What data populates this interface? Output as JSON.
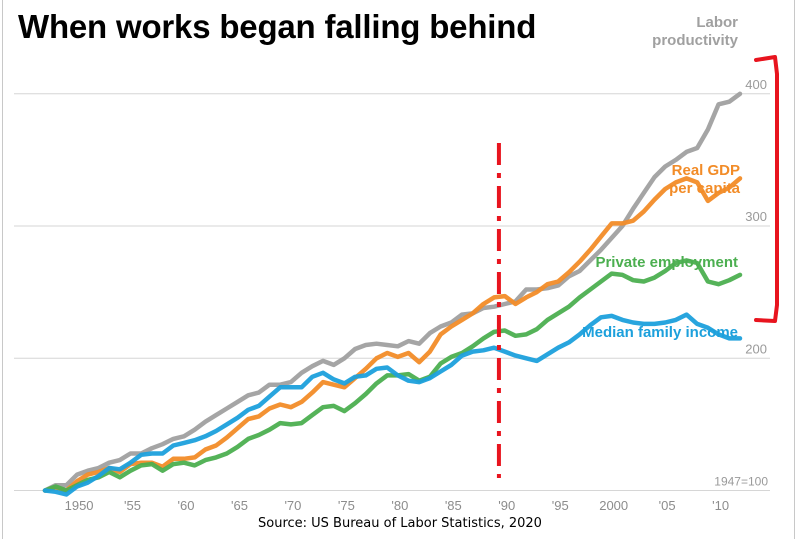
{
  "title": "When works began falling behind",
  "source": "Source: US Bureau of Labor Statistics, 2020",
  "chart_data": {
    "type": "line",
    "title": "When works began falling behind",
    "xlim": [
      1947,
      2013
    ],
    "ylim": [
      100,
      430
    ],
    "x_ticks": [
      {
        "value": 1950,
        "label": "1950"
      },
      {
        "value": 1955,
        "label": "'55"
      },
      {
        "value": 1960,
        "label": "'60"
      },
      {
        "value": 1965,
        "label": "'65"
      },
      {
        "value": 1970,
        "label": "'70"
      },
      {
        "value": 1975,
        "label": "'75"
      },
      {
        "value": 1980,
        "label": "'80"
      },
      {
        "value": 1985,
        "label": "'85"
      },
      {
        "value": 1990,
        "label": "'90"
      },
      {
        "value": 1995,
        "label": "'95"
      },
      {
        "value": 2000,
        "label": "2000"
      },
      {
        "value": 2005,
        "label": "'05"
      },
      {
        "value": 2010,
        "label": "'10"
      }
    ],
    "y_ticks": [
      {
        "value": 400,
        "label": "400"
      },
      {
        "value": 300,
        "label": "300"
      },
      {
        "value": 200,
        "label": "200"
      },
      {
        "value": 100,
        "label": "1947=100"
      }
    ],
    "grid": true,
    "series": [
      {
        "name": "Labor productivity",
        "label_lines": [
          "Labor",
          "productivity"
        ],
        "color": "#a0a0a0",
        "points": [
          [
            1947,
            100
          ],
          [
            1948,
            104
          ],
          [
            1949,
            104
          ],
          [
            1950,
            112
          ],
          [
            1951,
            115
          ],
          [
            1952,
            117
          ],
          [
            1953,
            121
          ],
          [
            1954,
            123
          ],
          [
            1955,
            128
          ],
          [
            1956,
            128
          ],
          [
            1957,
            132
          ],
          [
            1958,
            135
          ],
          [
            1959,
            139
          ],
          [
            1960,
            141
          ],
          [
            1961,
            146
          ],
          [
            1962,
            152
          ],
          [
            1963,
            157
          ],
          [
            1964,
            162
          ],
          [
            1965,
            167
          ],
          [
            1966,
            172
          ],
          [
            1967,
            174
          ],
          [
            1968,
            180
          ],
          [
            1969,
            180
          ],
          [
            1970,
            182
          ],
          [
            1971,
            189
          ],
          [
            1972,
            194
          ],
          [
            1973,
            198
          ],
          [
            1974,
            195
          ],
          [
            1975,
            200
          ],
          [
            1976,
            207
          ],
          [
            1977,
            210
          ],
          [
            1978,
            211
          ],
          [
            1979,
            210
          ],
          [
            1980,
            209
          ],
          [
            1981,
            213
          ],
          [
            1982,
            211
          ],
          [
            1983,
            219
          ],
          [
            1984,
            224
          ],
          [
            1985,
            227
          ],
          [
            1986,
            233
          ],
          [
            1987,
            234
          ],
          [
            1988,
            238
          ],
          [
            1989,
            239
          ],
          [
            1990,
            241
          ],
          [
            1991,
            243
          ],
          [
            1992,
            252
          ],
          [
            1993,
            252
          ],
          [
            1994,
            253
          ],
          [
            1995,
            255
          ],
          [
            1996,
            262
          ],
          [
            1997,
            266
          ],
          [
            1998,
            274
          ],
          [
            1999,
            282
          ],
          [
            2000,
            291
          ],
          [
            2001,
            300
          ],
          [
            2002,
            313
          ],
          [
            2003,
            325
          ],
          [
            2004,
            337
          ],
          [
            2005,
            345
          ],
          [
            2006,
            350
          ],
          [
            2007,
            356
          ],
          [
            2008,
            359
          ],
          [
            2009,
            373
          ],
          [
            2010,
            392
          ],
          [
            2011,
            394
          ],
          [
            2012,
            400
          ]
        ]
      },
      {
        "name": "Real GDP per capita",
        "label_lines": [
          "Real GDP",
          "per capita"
        ],
        "color": "#f28c28",
        "points": [
          [
            1947,
            100
          ],
          [
            1948,
            102
          ],
          [
            1949,
            100
          ],
          [
            1950,
            107
          ],
          [
            1951,
            112
          ],
          [
            1952,
            114
          ],
          [
            1953,
            117
          ],
          [
            1954,
            114
          ],
          [
            1955,
            120
          ],
          [
            1956,
            121
          ],
          [
            1957,
            121
          ],
          [
            1958,
            118
          ],
          [
            1959,
            124
          ],
          [
            1960,
            124
          ],
          [
            1961,
            125
          ],
          [
            1962,
            131
          ],
          [
            1963,
            134
          ],
          [
            1964,
            140
          ],
          [
            1965,
            147
          ],
          [
            1966,
            154
          ],
          [
            1967,
            156
          ],
          [
            1968,
            162
          ],
          [
            1969,
            165
          ],
          [
            1970,
            163
          ],
          [
            1971,
            167
          ],
          [
            1972,
            174
          ],
          [
            1973,
            182
          ],
          [
            1974,
            180
          ],
          [
            1975,
            178
          ],
          [
            1976,
            185
          ],
          [
            1977,
            192
          ],
          [
            1978,
            200
          ],
          [
            1979,
            204
          ],
          [
            1980,
            201
          ],
          [
            1981,
            204
          ],
          [
            1982,
            197
          ],
          [
            1983,
            205
          ],
          [
            1984,
            218
          ],
          [
            1985,
            224
          ],
          [
            1986,
            229
          ],
          [
            1987,
            234
          ],
          [
            1988,
            241
          ],
          [
            1989,
            246
          ],
          [
            1990,
            247
          ],
          [
            1991,
            241
          ],
          [
            1992,
            246
          ],
          [
            1993,
            250
          ],
          [
            1994,
            256
          ],
          [
            1995,
            258
          ],
          [
            1996,
            265
          ],
          [
            1997,
            273
          ],
          [
            1998,
            282
          ],
          [
            1999,
            292
          ],
          [
            2000,
            302
          ],
          [
            2001,
            302
          ],
          [
            2002,
            304
          ],
          [
            2003,
            311
          ],
          [
            2004,
            320
          ],
          [
            2005,
            328
          ],
          [
            2006,
            333
          ],
          [
            2007,
            336
          ],
          [
            2008,
            333
          ],
          [
            2009,
            319
          ],
          [
            2010,
            325
          ],
          [
            2011,
            329
          ],
          [
            2012,
            336
          ]
        ]
      },
      {
        "name": "Private employment",
        "label_lines": [
          "Private employment"
        ],
        "color": "#4caf50",
        "points": [
          [
            1947,
            100
          ],
          [
            1948,
            103
          ],
          [
            1949,
            100
          ],
          [
            1950,
            104
          ],
          [
            1951,
            108
          ],
          [
            1952,
            110
          ],
          [
            1953,
            114
          ],
          [
            1954,
            110
          ],
          [
            1955,
            115
          ],
          [
            1956,
            119
          ],
          [
            1957,
            120
          ],
          [
            1958,
            115
          ],
          [
            1959,
            120
          ],
          [
            1960,
            121
          ],
          [
            1961,
            119
          ],
          [
            1962,
            123
          ],
          [
            1963,
            125
          ],
          [
            1964,
            128
          ],
          [
            1965,
            133
          ],
          [
            1966,
            139
          ],
          [
            1967,
            142
          ],
          [
            1968,
            146
          ],
          [
            1969,
            151
          ],
          [
            1970,
            150
          ],
          [
            1971,
            151
          ],
          [
            1972,
            157
          ],
          [
            1973,
            163
          ],
          [
            1974,
            164
          ],
          [
            1975,
            160
          ],
          [
            1976,
            166
          ],
          [
            1977,
            173
          ],
          [
            1978,
            181
          ],
          [
            1979,
            187
          ],
          [
            1980,
            187
          ],
          [
            1981,
            188
          ],
          [
            1982,
            183
          ],
          [
            1983,
            186
          ],
          [
            1984,
            196
          ],
          [
            1985,
            201
          ],
          [
            1986,
            204
          ],
          [
            1987,
            209
          ],
          [
            1988,
            215
          ],
          [
            1989,
            220
          ],
          [
            1990,
            221
          ],
          [
            1991,
            217
          ],
          [
            1992,
            218
          ],
          [
            1993,
            222
          ],
          [
            1994,
            229
          ],
          [
            1995,
            234
          ],
          [
            1996,
            239
          ],
          [
            1997,
            246
          ],
          [
            1998,
            252
          ],
          [
            1999,
            258
          ],
          [
            2000,
            264
          ],
          [
            2001,
            263
          ],
          [
            2002,
            259
          ],
          [
            2003,
            258
          ],
          [
            2004,
            261
          ],
          [
            2005,
            266
          ],
          [
            2006,
            272
          ],
          [
            2007,
            274
          ],
          [
            2008,
            272
          ],
          [
            2009,
            258
          ],
          [
            2010,
            256
          ],
          [
            2011,
            259
          ],
          [
            2012,
            263
          ]
        ]
      },
      {
        "name": "Median family income",
        "label_lines": [
          "Median family income"
        ],
        "color": "#1ca0dc",
        "points": [
          [
            1947,
            100
          ],
          [
            1948,
            99
          ],
          [
            1949,
            97
          ],
          [
            1950,
            103
          ],
          [
            1951,
            106
          ],
          [
            1952,
            111
          ],
          [
            1953,
            117
          ],
          [
            1954,
            116
          ],
          [
            1955,
            121
          ],
          [
            1956,
            127
          ],
          [
            1957,
            128
          ],
          [
            1958,
            128
          ],
          [
            1959,
            134
          ],
          [
            1960,
            136
          ],
          [
            1961,
            138
          ],
          [
            1962,
            141
          ],
          [
            1963,
            145
          ],
          [
            1964,
            150
          ],
          [
            1965,
            155
          ],
          [
            1966,
            161
          ],
          [
            1967,
            164
          ],
          [
            1968,
            171
          ],
          [
            1969,
            178
          ],
          [
            1970,
            178
          ],
          [
            1971,
            178
          ],
          [
            1972,
            186
          ],
          [
            1973,
            189
          ],
          [
            1974,
            184
          ],
          [
            1975,
            181
          ],
          [
            1976,
            186
          ],
          [
            1977,
            187
          ],
          [
            1978,
            192
          ],
          [
            1979,
            193
          ],
          [
            1980,
            187
          ],
          [
            1981,
            183
          ],
          [
            1982,
            182
          ],
          [
            1983,
            185
          ],
          [
            1984,
            190
          ],
          [
            1985,
            195
          ],
          [
            1986,
            202
          ],
          [
            1987,
            205
          ],
          [
            1988,
            206
          ],
          [
            1989,
            208
          ],
          [
            1990,
            205
          ],
          [
            1991,
            202
          ],
          [
            1992,
            200
          ],
          [
            1993,
            198
          ],
          [
            1994,
            203
          ],
          [
            1995,
            208
          ],
          [
            1996,
            212
          ],
          [
            1997,
            218
          ],
          [
            1998,
            225
          ],
          [
            1999,
            231
          ],
          [
            2000,
            232
          ],
          [
            2001,
            229
          ],
          [
            2002,
            227
          ],
          [
            2003,
            226
          ],
          [
            2004,
            226
          ],
          [
            2005,
            227
          ],
          [
            2006,
            229
          ],
          [
            2007,
            233
          ],
          [
            2008,
            226
          ],
          [
            2009,
            223
          ],
          [
            2010,
            218
          ],
          [
            2011,
            215
          ],
          [
            2012,
            215
          ]
        ]
      }
    ],
    "annotations": {
      "divider_year": 1989.5,
      "divider_color": "#e8141e",
      "bracket_color": "#e8141e"
    }
  }
}
